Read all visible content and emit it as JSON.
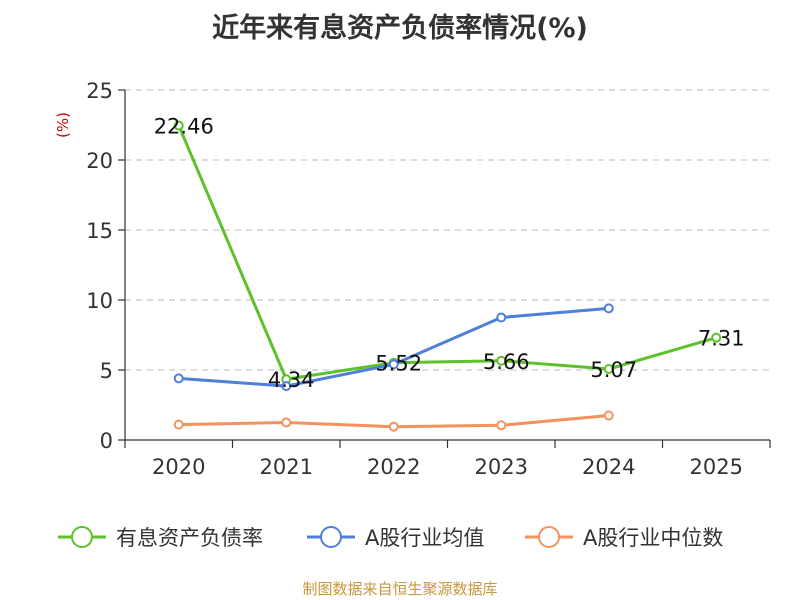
{
  "chart_data": {
    "type": "line",
    "title": "近年来有息资产负债率情况(%)",
    "ylabel": "(%)",
    "categories": [
      "2020",
      "2021",
      "2022",
      "2023",
      "2024",
      "2025"
    ],
    "ylim": [
      0,
      25
    ],
    "yticks": [
      0,
      5,
      10,
      15,
      20,
      25
    ],
    "grid": true,
    "legend_position": "bottom",
    "series": [
      {
        "name": "有息资产负债率",
        "color": "#5cc12a",
        "values": [
          22.46,
          4.34,
          5.52,
          5.66,
          5.07,
          7.31
        ],
        "labels": [
          "22.46",
          "4.34",
          "5.52",
          "5.66",
          "5.07",
          "7.31"
        ]
      },
      {
        "name": "A股行业均值",
        "color": "#4f7fd8",
        "values": [
          4.4,
          3.85,
          5.4,
          8.75,
          9.4,
          null
        ]
      },
      {
        "name": "A股行业中位数",
        "color": "#f4925e",
        "values": [
          1.1,
          1.25,
          0.95,
          1.05,
          1.75,
          null
        ]
      }
    ]
  },
  "source": "制图数据来自恒生聚源数据库"
}
